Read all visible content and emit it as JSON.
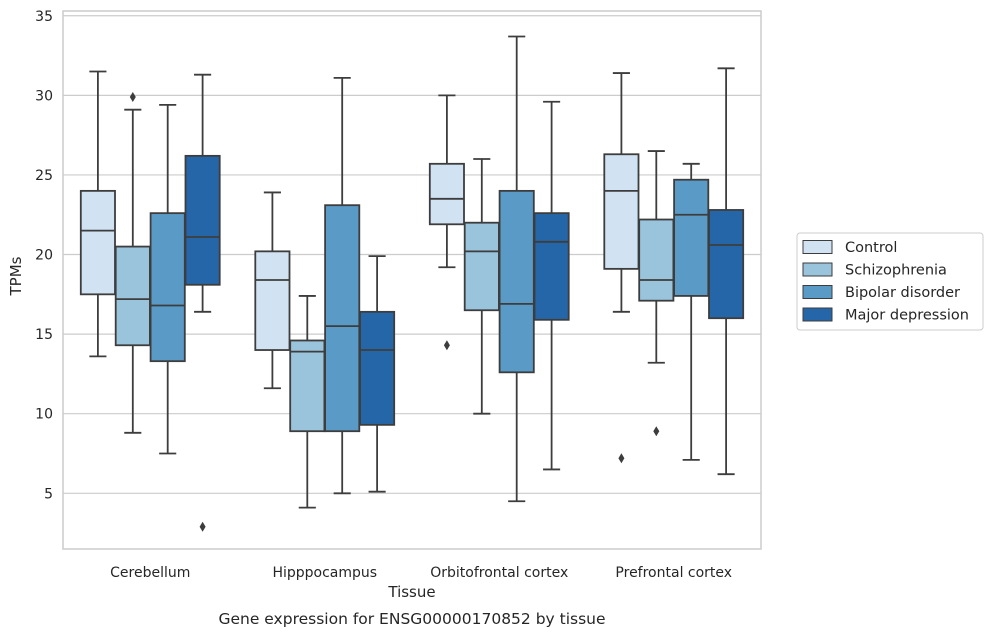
{
  "caption": "Gene expression for ENSG00000170852 by tissue",
  "chart_data": {
    "type": "boxplot",
    "xlabel": "Tissue",
    "ylabel": "TPMs",
    "ylim": [
      1.5,
      35.3
    ],
    "yticks": [
      5,
      10,
      15,
      20,
      25,
      30,
      35
    ],
    "grid": "horizontal",
    "legend_position": "right",
    "categories": [
      "Cerebellum",
      "Hipppocampus",
      "Orbitofrontal cortex",
      "Prefrontal cortex"
    ],
    "series": [
      {
        "name": "Control",
        "color": "#d1e2f2",
        "boxes": [
          {
            "whislo": 13.6,
            "q1": 17.5,
            "med": 21.5,
            "q3": 24.0,
            "whishi": 31.5,
            "fliers": []
          },
          {
            "whislo": 11.6,
            "q1": 14.0,
            "med": 18.4,
            "q3": 20.2,
            "whishi": 23.9,
            "fliers": []
          },
          {
            "whislo": 19.2,
            "q1": 21.9,
            "med": 23.5,
            "q3": 25.7,
            "whishi": 30.0,
            "fliers": [
              14.3
            ]
          },
          {
            "whislo": 16.4,
            "q1": 19.1,
            "med": 24.0,
            "q3": 26.3,
            "whishi": 31.4,
            "fliers": [
              7.2
            ]
          }
        ]
      },
      {
        "name": "Schizophrenia",
        "color": "#9ac3dc",
        "boxes": [
          {
            "whislo": 8.8,
            "q1": 14.3,
            "med": 17.2,
            "q3": 20.5,
            "whishi": 29.1,
            "fliers": [
              29.9
            ]
          },
          {
            "whislo": 4.1,
            "q1": 8.9,
            "med": 13.9,
            "q3": 14.6,
            "whishi": 17.4,
            "fliers": []
          },
          {
            "whislo": 10.0,
            "q1": 16.5,
            "med": 20.2,
            "q3": 22.0,
            "whishi": 26.0,
            "fliers": []
          },
          {
            "whislo": 13.2,
            "q1": 17.1,
            "med": 18.4,
            "q3": 22.2,
            "whishi": 26.5,
            "fliers": [
              8.9
            ]
          }
        ]
      },
      {
        "name": "Bipolar disorder",
        "color": "#5a9ac6",
        "boxes": [
          {
            "whislo": 7.5,
            "q1": 13.3,
            "med": 16.8,
            "q3": 22.6,
            "whishi": 29.4,
            "fliers": []
          },
          {
            "whislo": 5.0,
            "q1": 8.9,
            "med": 15.5,
            "q3": 23.1,
            "whishi": 31.1,
            "fliers": []
          },
          {
            "whislo": 4.5,
            "q1": 12.6,
            "med": 16.9,
            "q3": 24.0,
            "whishi": 33.7,
            "fliers": []
          },
          {
            "whislo": 7.1,
            "q1": 17.4,
            "med": 22.5,
            "q3": 24.7,
            "whishi": 25.7,
            "fliers": []
          }
        ]
      },
      {
        "name": "Major depression",
        "color": "#2566a8",
        "boxes": [
          {
            "whislo": 16.4,
            "q1": 18.1,
            "med": 21.1,
            "q3": 26.2,
            "whishi": 31.3,
            "fliers": [
              2.9
            ]
          },
          {
            "whislo": 5.1,
            "q1": 9.3,
            "med": 14.0,
            "q3": 16.4,
            "whishi": 19.9,
            "fliers": []
          },
          {
            "whislo": 6.5,
            "q1": 15.9,
            "med": 20.8,
            "q3": 22.6,
            "whishi": 29.6,
            "fliers": []
          },
          {
            "whislo": 6.2,
            "q1": 16.0,
            "med": 20.6,
            "q3": 22.8,
            "whishi": 31.7,
            "fliers": []
          }
        ]
      }
    ]
  }
}
